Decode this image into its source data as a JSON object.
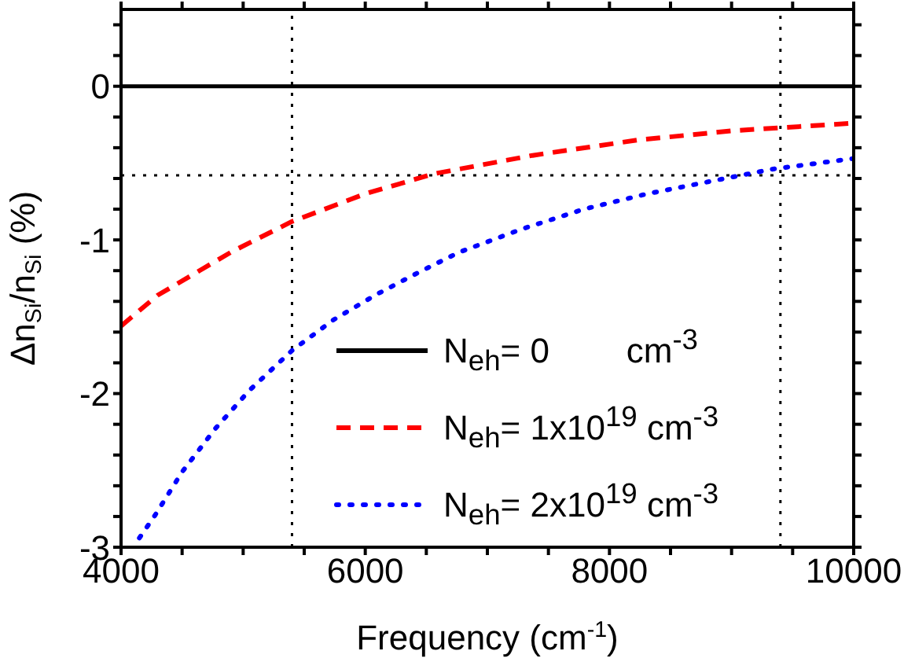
{
  "chart_data": {
    "type": "line",
    "xlabel": "Frequency (cm$^{-1}$)",
    "ylabel": "Δn$_{Si}$/n$_{Si}$ (%)",
    "xlim": [
      4000,
      10000
    ],
    "ylim": [
      -3,
      0.5
    ],
    "xticks": [
      4000,
      {
        "value": 4500,
        "label": null
      },
      {
        "value": 5000,
        "label": null
      },
      {
        "value": 5500,
        "label": null
      },
      6000,
      {
        "value": 6500,
        "label": null
      },
      {
        "value": 7000,
        "label": null
      },
      {
        "value": 7500,
        "label": null
      },
      8000,
      {
        "value": 8500,
        "label": null
      },
      {
        "value": 9000,
        "label": null
      },
      {
        "value": 9500,
        "label": null
      },
      10000
    ],
    "yticks": [
      -3,
      {
        "value": -2.8,
        "label": null
      },
      {
        "value": -2.6,
        "label": null
      },
      {
        "value": -2.4,
        "label": null
      },
      {
        "value": -2.2,
        "label": null
      },
      -2,
      {
        "value": -1.8,
        "label": null
      },
      {
        "value": -1.6,
        "label": null
      },
      {
        "value": -1.4,
        "label": null
      },
      {
        "value": -1.2,
        "label": null
      },
      -1,
      {
        "value": -0.8,
        "label": null
      },
      {
        "value": -0.6,
        "label": null
      },
      {
        "value": -0.4,
        "label": null
      },
      {
        "value": -0.2,
        "label": null
      },
      0,
      {
        "value": 0.2,
        "label": null
      },
      {
        "value": 0.4,
        "label": null
      }
    ],
    "grid": false,
    "legend": "bottom right",
    "series": [
      {
        "name": "N$_{eh}$= 0        cm$^{-3}$",
        "color": "#000000",
        "line_style": "solid",
        "x": [
          4000,
          10000
        ],
        "values": [
          0,
          0
        ]
      },
      {
        "name": "N$_{eh}$= 1x10$^{19}$ cm$^{-3}$",
        "color": "#ff0000",
        "line_style": "dashed",
        "x": [
          4000,
          4300,
          4900,
          5400,
          6000,
          6560,
          7370,
          8230,
          9000,
          10000
        ],
        "values": [
          -1.56,
          -1.36,
          -1.08,
          -0.88,
          -0.7,
          -0.57,
          -0.45,
          -0.35,
          -0.29,
          -0.24
        ]
      },
      {
        "name": "N$_{eh}$= 2x10$^{19}$ cm$^{-3}$",
        "color": "#0000ff",
        "line_style": "dotted",
        "x": [
          4150,
          4280,
          4500,
          4770,
          5050,
          5400,
          5740,
          6080,
          6440,
          6770,
          7280,
          7790,
          8310,
          8820,
          9330,
          10000
        ],
        "values": [
          -2.94,
          -2.79,
          -2.51,
          -2.23,
          -1.98,
          -1.72,
          -1.52,
          -1.36,
          -1.21,
          -1.08,
          -0.93,
          -0.8,
          -0.7,
          -0.62,
          -0.54,
          -0.47
        ]
      }
    ],
    "ref_lines": [
      {
        "axis": "x",
        "value": 5400,
        "color": "#000000",
        "line_style": "dotted"
      },
      {
        "axis": "x",
        "value": 9400,
        "color": "#000000",
        "line_style": "dotted"
      },
      {
        "axis": "y",
        "value": -0.58,
        "color": "#000000",
        "line_style": "dotted"
      }
    ]
  }
}
